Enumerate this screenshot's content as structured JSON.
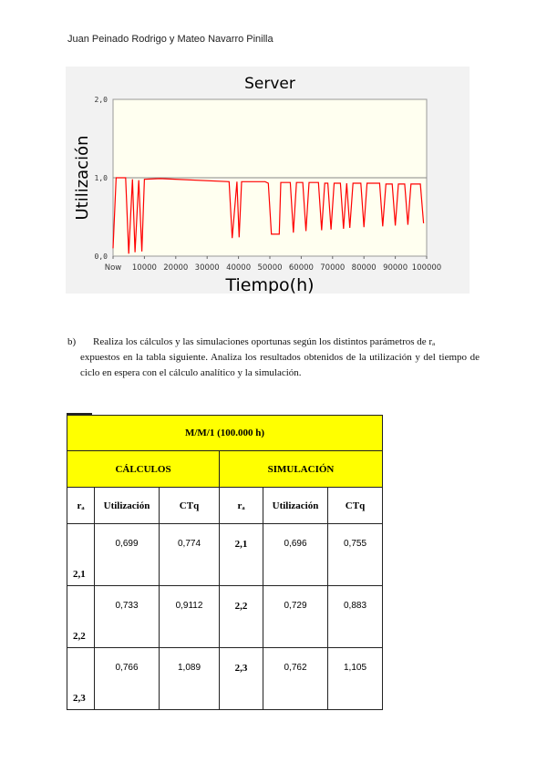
{
  "header": {
    "authors": "Juan Peinado Rodrigo y Mateo Navarro Pinilla"
  },
  "chart_data": {
    "type": "line",
    "title": "Server",
    "xlabel": "Tiempo(h)",
    "ylabel": "Utilización",
    "xlim": [
      0,
      100000
    ],
    "ylim": [
      0,
      2
    ],
    "x_tick_labels": [
      "Now",
      "10000",
      "20000",
      "30000",
      "40000",
      "50000",
      "60000",
      "70000",
      "80000",
      "90000",
      "100000"
    ],
    "y_tick_labels": [
      "0,0",
      "1,0",
      "2,0"
    ],
    "grid": "horizontal line at 1,0",
    "background": "#fffff0",
    "line_color": "#ff0000",
    "series": [
      {
        "points": [
          [
            0,
            0.1
          ],
          [
            1000,
            1.0
          ],
          [
            4000,
            1.0
          ],
          [
            5000,
            0.03
          ],
          [
            6200,
            0.98
          ],
          [
            7000,
            0.05
          ],
          [
            8200,
            0.97
          ],
          [
            9200,
            0.06
          ],
          [
            10000,
            0.98
          ],
          [
            15000,
            0.99
          ],
          [
            37000,
            0.95
          ],
          [
            38000,
            0.23
          ],
          [
            39500,
            0.95
          ],
          [
            40200,
            0.24
          ],
          [
            41000,
            0.95
          ],
          [
            48500,
            0.95
          ],
          [
            49500,
            0.93
          ],
          [
            50500,
            0.28
          ],
          [
            53000,
            0.28
          ],
          [
            53500,
            0.94
          ],
          [
            56500,
            0.94
          ],
          [
            57500,
            0.3
          ],
          [
            58500,
            0.94
          ],
          [
            60500,
            0.94
          ],
          [
            61500,
            0.32
          ],
          [
            62500,
            0.94
          ],
          [
            65500,
            0.94
          ],
          [
            66500,
            0.33
          ],
          [
            67500,
            0.93
          ],
          [
            68500,
            0.93
          ],
          [
            69500,
            0.34
          ],
          [
            70500,
            0.93
          ],
          [
            72500,
            0.93
          ],
          [
            73500,
            0.35
          ],
          [
            74500,
            0.93
          ],
          [
            75500,
            0.36
          ],
          [
            76500,
            0.93
          ],
          [
            79000,
            0.93
          ],
          [
            80000,
            0.37
          ],
          [
            81000,
            0.93
          ],
          [
            85000,
            0.93
          ],
          [
            86000,
            0.38
          ],
          [
            87000,
            0.92
          ],
          [
            89000,
            0.92
          ],
          [
            90000,
            0.39
          ],
          [
            91000,
            0.92
          ],
          [
            93000,
            0.92
          ],
          [
            94000,
            0.4
          ],
          [
            95000,
            0.92
          ],
          [
            98000,
            0.92
          ],
          [
            99000,
            0.42
          ]
        ]
      }
    ]
  },
  "paragraph": {
    "label": "b)",
    "line1": "Realiza los cálculos y las simulaciones oportunas según los distintos parámetros de rₐ",
    "line2": "expuestos en la tabla siguiente. Analiza los resultados obtenidos de la utilización y del tiempo de ciclo en espera con el cálculo analítico y la simulación."
  },
  "table": {
    "title": "M/M/1 (100.000 h)",
    "group_calc": "CÁLCULOS",
    "group_sim": "SIMULACIÓN",
    "columns": [
      "rₐ",
      "Utilización",
      "CTq",
      "rₐ",
      "Utilización",
      "CTq"
    ],
    "rows": [
      [
        "2,1",
        "0,699",
        "0,774",
        "2,1",
        "0,696",
        "0,755"
      ],
      [
        "2,2",
        "0,733",
        "0,9112",
        "2,2",
        "0,729",
        "0,883"
      ],
      [
        "2,3",
        "0,766",
        "1,089",
        "2,3",
        "0,762",
        "1,105"
      ]
    ]
  }
}
